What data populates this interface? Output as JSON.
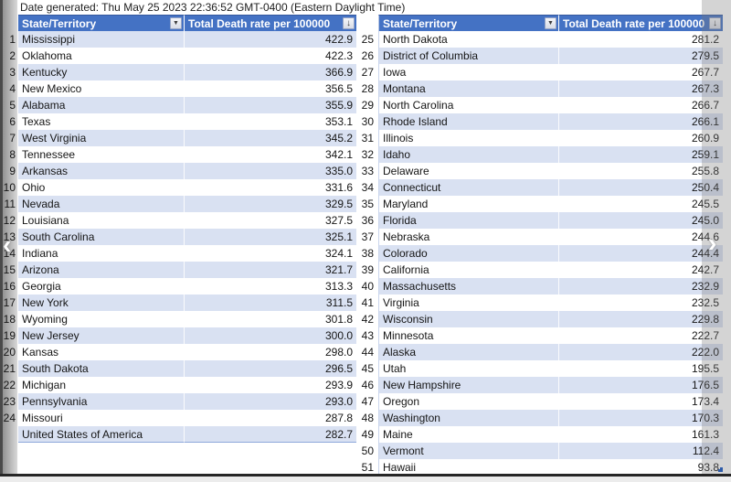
{
  "meta": {
    "date_generated": "Date generated: Thu May 25 2023 22:36:52 GMT-0400 (Eastern Daylight Time)"
  },
  "columns": {
    "state": "State/Territory",
    "rate": "Total Death rate per 100000"
  },
  "icons": {
    "filter_dropdown_icon": "▼",
    "sort_descending_icon": "↓",
    "prev_arrow_icon": "‹",
    "next_arrow_icon": "›"
  },
  "colors": {
    "header_bg": "#4472C4",
    "header_text": "#FFFFFF",
    "band_row_bg": "#D9E1F2",
    "table_border": "#8EA9DB"
  },
  "left_table": {
    "band_phase": 0,
    "rows": [
      {
        "num": "1",
        "state": "Mississippi",
        "value": "422.9"
      },
      {
        "num": "2",
        "state": "Oklahoma",
        "value": "422.3"
      },
      {
        "num": "3",
        "state": "Kentucky",
        "value": "366.9"
      },
      {
        "num": "4",
        "state": "New Mexico",
        "value": "356.5"
      },
      {
        "num": "5",
        "state": "Alabama",
        "value": "355.9"
      },
      {
        "num": "6",
        "state": "Texas",
        "value": "353.1"
      },
      {
        "num": "7",
        "state": "West Virginia",
        "value": "345.2"
      },
      {
        "num": "8",
        "state": "Tennessee",
        "value": "342.1"
      },
      {
        "num": "9",
        "state": "Arkansas",
        "value": "335.0"
      },
      {
        "num": "10",
        "state": "Ohio",
        "value": "331.6"
      },
      {
        "num": "11",
        "state": "Nevada",
        "value": "329.5"
      },
      {
        "num": "12",
        "state": "Louisiana",
        "value": "327.5"
      },
      {
        "num": "13",
        "state": "South Carolina",
        "value": "325.1"
      },
      {
        "num": "14",
        "state": "Indiana",
        "value": "324.1"
      },
      {
        "num": "15",
        "state": "Arizona",
        "value": "321.7"
      },
      {
        "num": "16",
        "state": "Georgia",
        "value": "313.3"
      },
      {
        "num": "17",
        "state": "New York",
        "value": "311.5"
      },
      {
        "num": "18",
        "state": "Wyoming",
        "value": "301.8"
      },
      {
        "num": "19",
        "state": "New Jersey",
        "value": "300.0"
      },
      {
        "num": "20",
        "state": "Kansas",
        "value": "298.0"
      },
      {
        "num": "21",
        "state": "South Dakota",
        "value": "296.5"
      },
      {
        "num": "22",
        "state": "Michigan",
        "value": "293.9"
      },
      {
        "num": "23",
        "state": "Pennsylvania",
        "value": "293.0"
      },
      {
        "num": "24",
        "state": "Missouri",
        "value": "287.8"
      },
      {
        "num": "",
        "state": "United States of America",
        "value": "282.7"
      }
    ]
  },
  "right_table": {
    "band_phase": 1,
    "rows": [
      {
        "num": "25",
        "state": "North Dakota",
        "value": "281.2"
      },
      {
        "num": "26",
        "state": "District of Columbia",
        "value": "279.5"
      },
      {
        "num": "27",
        "state": "Iowa",
        "value": "267.7"
      },
      {
        "num": "28",
        "state": "Montana",
        "value": "267.3"
      },
      {
        "num": "29",
        "state": "North Carolina",
        "value": "266.7"
      },
      {
        "num": "30",
        "state": "Rhode Island",
        "value": "266.1"
      },
      {
        "num": "31",
        "state": "Illinois",
        "value": "260.9"
      },
      {
        "num": "32",
        "state": "Idaho",
        "value": "259.1"
      },
      {
        "num": "33",
        "state": "Delaware",
        "value": "255.8"
      },
      {
        "num": "34",
        "state": "Connecticut",
        "value": "250.4"
      },
      {
        "num": "35",
        "state": "Maryland",
        "value": "245.5"
      },
      {
        "num": "36",
        "state": "Florida",
        "value": "245.0"
      },
      {
        "num": "37",
        "state": "Nebraska",
        "value": "244.6"
      },
      {
        "num": "38",
        "state": "Colorado",
        "value": "244.4"
      },
      {
        "num": "39",
        "state": "California",
        "value": "242.7"
      },
      {
        "num": "40",
        "state": "Massachusetts",
        "value": "232.9"
      },
      {
        "num": "41",
        "state": "Virginia",
        "value": "232.5"
      },
      {
        "num": "42",
        "state": "Wisconsin",
        "value": "229.8"
      },
      {
        "num": "43",
        "state": "Minnesota",
        "value": "222.7"
      },
      {
        "num": "44",
        "state": "Alaska",
        "value": "222.0"
      },
      {
        "num": "45",
        "state": "Utah",
        "value": "195.5"
      },
      {
        "num": "46",
        "state": "New Hampshire",
        "value": "176.5"
      },
      {
        "num": "47",
        "state": "Oregon",
        "value": "173.4"
      },
      {
        "num": "48",
        "state": "Washington",
        "value": "170.3"
      },
      {
        "num": "49",
        "state": "Maine",
        "value": "161.3"
      },
      {
        "num": "50",
        "state": "Vermont",
        "value": "112.4"
      },
      {
        "num": "51",
        "state": "Hawaii",
        "value": "93.8"
      }
    ]
  }
}
